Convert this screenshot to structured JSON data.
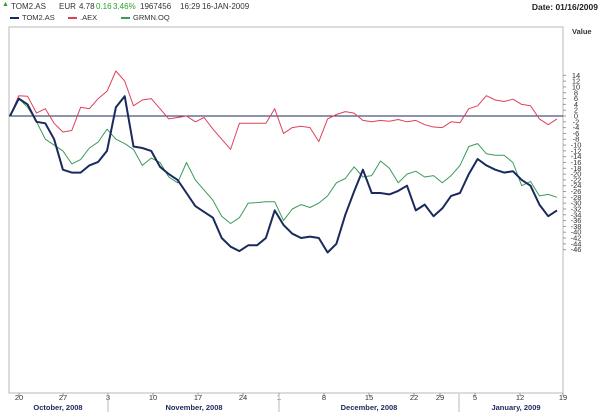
{
  "header": {
    "symbol": "TOM2.AS",
    "currency": "EUR",
    "price": "4.78",
    "change": "0.16",
    "change_pct": "3.46%",
    "volume": "1967456",
    "time": "16:29",
    "date": "16-JAN-2009",
    "right_date": "Date: 01/16/2009",
    "up_color": "#2aa02a"
  },
  "legend": [
    {
      "label": "TOM2.AS",
      "color": "#1b2a5c"
    },
    {
      "label": ".AEX",
      "color": "#e0405a"
    },
    {
      "label": "GRMN.OQ",
      "color": "#3a9a5a"
    }
  ],
  "chart_data": {
    "type": "line",
    "title": "",
    "xlabel": "",
    "ylabel": "Value",
    "ylim": [
      -47,
      16
    ],
    "yticks": [
      14,
      12,
      10,
      8,
      6,
      4,
      2,
      0,
      -2,
      -4,
      -6,
      -8,
      -10,
      -12,
      -14,
      -16,
      -18,
      -20,
      -22,
      -24,
      -26,
      -28,
      -30,
      -32,
      -34,
      -36,
      -38,
      -40,
      -42,
      -44,
      -46
    ],
    "grid": false,
    "legend_position": "top-left",
    "x_tick_labels": [
      "20",
      "27",
      "3",
      "10",
      "17",
      "24",
      "1",
      "8",
      "15",
      "22",
      "29",
      "5",
      "12",
      "19"
    ],
    "month_labels": [
      "October, 2008",
      "November, 2008",
      "December, 2008",
      "January, 2009"
    ],
    "reference_line": 0,
    "series": [
      {
        "name": "TOM2.AS",
        "color": "#1b2a5c",
        "values": [
          0,
          6,
          4,
          -2,
          -2.5,
          -8,
          -18.5,
          -19.5,
          -19.5,
          -17,
          -15.8,
          -12,
          3,
          6.8,
          -10.5,
          -11,
          -12,
          -17.5,
          -20,
          -22,
          -26.5,
          -31,
          -33,
          -35,
          -42,
          -45,
          -46.5,
          -44.5,
          -44.5,
          -42,
          -32.5,
          -37.5,
          -40.5,
          -42,
          -41.5,
          -42,
          -47,
          -44,
          -34,
          -26,
          -18.5,
          -26.5,
          -26.5,
          -27,
          -25.8,
          -24,
          -32.5,
          -30.5,
          -34.5,
          -31.8,
          -27.5,
          -26.5,
          -20,
          -14.8,
          -17,
          -18.5,
          -19.5,
          -19,
          -22,
          -24,
          -30.5,
          -34.5,
          -32.5
        ]
      },
      {
        "name": ".AEX",
        "color": "#e0405a",
        "values": [
          0,
          7,
          6.8,
          1,
          2.5,
          -2.5,
          -5.5,
          -5,
          3,
          2.5,
          6,
          8.5,
          15.5,
          12,
          3.5,
          5.5,
          6,
          2.5,
          -1,
          -0.5,
          0,
          -2,
          -0.5,
          -4.5,
          -8,
          -11.5,
          -2.5,
          -2.5,
          -2.5,
          -2.5,
          2.5,
          -6,
          -4,
          -3.5,
          -4,
          -8.8,
          -1,
          0.5,
          1.5,
          1,
          -1.5,
          -2,
          -1.5,
          -1.8,
          -1.2,
          -2,
          -1.5,
          -3,
          -3.8,
          -4,
          -2,
          -2.3,
          2.5,
          3.5,
          7,
          5.5,
          5,
          5.8,
          4,
          3.5,
          -1,
          -3,
          -1
        ]
      },
      {
        "name": "GRMN.OQ",
        "color": "#3a9a5a",
        "values": [
          0,
          6,
          3,
          -2,
          -8,
          -10,
          -12,
          -16.5,
          -15,
          -11,
          -9,
          -4.5,
          -8,
          -9.5,
          -11.5,
          -17,
          -14.5,
          -16,
          -21,
          -23,
          -16,
          -22,
          -25.5,
          -29,
          -34.5,
          -37,
          -35,
          -30,
          -29.8,
          -29.5,
          -29.5,
          -36,
          -32,
          -30.5,
          -31.5,
          -30,
          -27.5,
          -23,
          -21.5,
          -17.5,
          -21,
          -20.5,
          -15.5,
          -18,
          -23,
          -20,
          -19,
          -21,
          -20.5,
          -23,
          -20.5,
          -17,
          -10.5,
          -9.5,
          -13,
          -13.5,
          -13.5,
          -16,
          -24,
          -22.5,
          -27.5,
          -27,
          -28
        ]
      }
    ]
  }
}
